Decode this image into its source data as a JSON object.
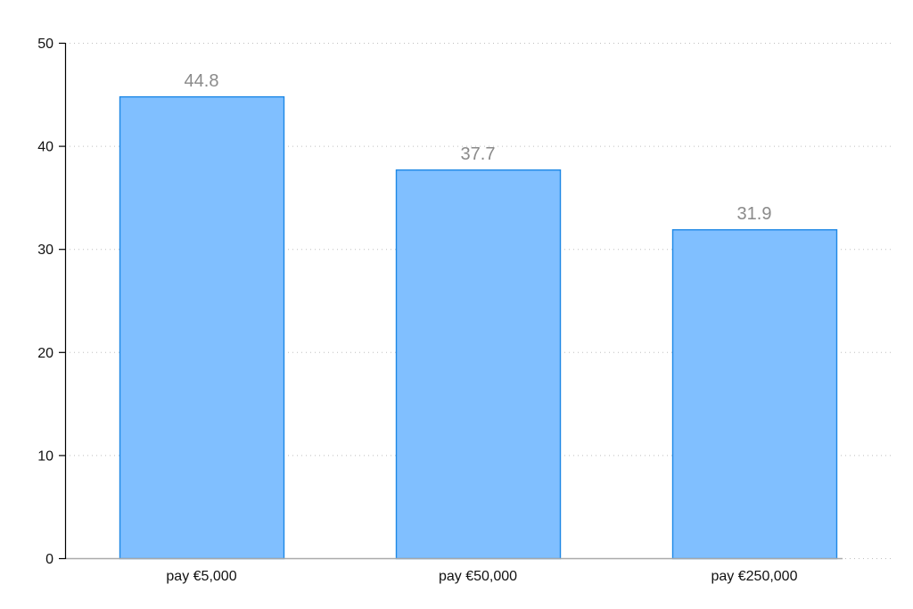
{
  "chart_data": {
    "type": "bar",
    "categories": [
      "pay €5,000",
      "pay €50,000",
      "pay €250,000"
    ],
    "values": [
      44.8,
      37.7,
      31.9
    ],
    "data_labels": [
      "44.8",
      "37.7",
      "31.9"
    ],
    "title": "",
    "xlabel": "",
    "ylabel": "",
    "ylim": [
      0,
      50
    ],
    "yticks": [
      0,
      10,
      20,
      30,
      40,
      50
    ],
    "ytick_labels": [
      "0",
      "10",
      "20",
      "30",
      "40",
      "50"
    ],
    "grid": true,
    "grid_style": "dotted horizontal",
    "legend": "none",
    "colors": {
      "bar_fill": "#80bfff",
      "bar_stroke": "#1e88e5",
      "data_label": "#8a8a8a",
      "grid": "#bfbfbf",
      "axis": "#000000",
      "baseline": "#aaaaaa"
    }
  }
}
